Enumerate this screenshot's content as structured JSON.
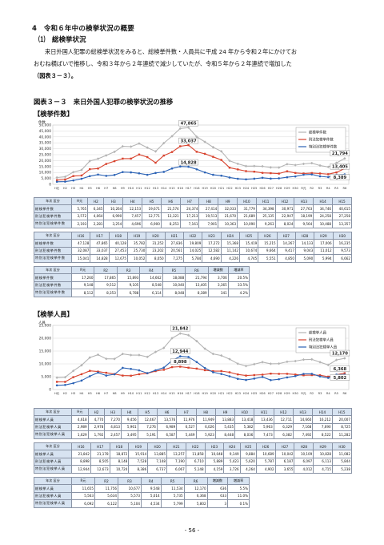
{
  "section": {
    "heading": "4　令和６年中の検挙状況の概要",
    "subheading": "⑴　総検挙状況",
    "paragraph_lines": [
      "来日外国人犯罪の総検挙状況をみると、総検挙件数・人員共に平成 24 年から令和２年にかけてお",
      "おむね横ばいで推移し、令和３年から２年連続で減少していたが、令和５年から２年連続で増加した",
      "（図表３－３）。"
    ]
  },
  "figure_title": "図表３－３　来日外国人犯罪の検挙状況の推移",
  "page_number": "- 56 -",
  "colors": {
    "total": "#b4b4b4",
    "penal": "#d8432e",
    "special": "#2b62b5",
    "table_header": "#d7e3f1"
  },
  "x_labels": [
    "H元",
    "H2",
    "H3",
    "H4",
    "H5",
    "H6",
    "H7",
    "H8",
    "H9",
    "H10",
    "H11",
    "H12",
    "H13",
    "H14",
    "H15",
    "H16",
    "H17",
    "H18",
    "H19",
    "H20",
    "H21",
    "H22",
    "H23",
    "H24",
    "H25",
    "H26",
    "H27",
    "H28",
    "H29",
    "H30",
    "R元",
    "R2",
    "R3",
    "R4",
    "R5",
    "R6"
  ],
  "cases": {
    "heading": "【検挙件数】",
    "corner_label": "年次 区分",
    "row_labels": [
      "総検挙件数",
      "刑法犯検挙件数",
      "特別法犯検挙件数"
    ],
    "table1": {
      "years": [
        "H元",
        "H2",
        "H3",
        "H4",
        "H5",
        "H6",
        "H7",
        "H8",
        "H9",
        "H10",
        "H11",
        "H12",
        "H13",
        "H14",
        "H15"
      ],
      "rows": [
        [
          "5,765",
          "6,345",
          "10,264",
          "12,153",
          "19,671",
          "21,574",
          "24,374",
          "27,414",
          "32,033",
          "31,779",
          "34,398",
          "30,971",
          "27,763",
          "34,746",
          "40,615"
        ],
        [
          "3,572",
          "4,064",
          "6,990",
          "7,457",
          "12,771",
          "13,321",
          "17,213",
          "19,513",
          "21,670",
          "21,689",
          "25,135",
          "22,947",
          "18,199",
          "24,258",
          "27,258"
        ],
        [
          "2,193",
          "2,281",
          "3,254",
          "4,696",
          "6,900",
          "8,253",
          "7,161",
          "7,901",
          "10,363",
          "10,090",
          "9,263",
          "8,024",
          "9,564",
          "10,488",
          "13,357"
        ]
      ]
    },
    "table2": {
      "years": [
        "H16",
        "H17",
        "H18",
        "H19",
        "H20",
        "H21",
        "H22",
        "H23",
        "H24",
        "H25",
        "H26",
        "H27",
        "H28",
        "H29",
        "H30"
      ],
      "rows": [
        [
          "47,128",
          "47,865",
          "40,128",
          "35,782",
          "31,252",
          "27,836",
          "19,809",
          "17,272",
          "15,368",
          "15,419",
          "15,215",
          "14,267",
          "14,133",
          "17,006",
          "16,235"
        ],
        [
          "32,087",
          "33,037",
          "27,453",
          "25,730",
          "23,202",
          "20,561",
          "14,025",
          "12,582",
          "11,142",
          "10,674",
          "9,664",
          "9,417",
          "9,043",
          "11,012",
          "9,573"
        ],
        [
          "15,041",
          "14,828",
          "12,675",
          "10,052",
          "8,050",
          "7,275",
          "5,784",
          "4,690",
          "4,226",
          "4,745",
          "5,551",
          "4,850",
          "5,090",
          "5,994",
          "6,662"
        ]
      ]
    },
    "table3": {
      "years": [
        "R元",
        "R2",
        "R3",
        "R4",
        "R5",
        "R6"
      ],
      "extra_headers": [
        "増減数",
        "増減率"
      ],
      "rows": [
        [
          "17,260",
          "17,865",
          "15,893",
          "14,662",
          "18,088",
          "21,794",
          "3,706",
          "20.5%"
        ],
        [
          "9,148",
          "9,512",
          "9,105",
          "8,548",
          "10,040",
          "13,405",
          "3,365",
          "33.5%"
        ],
        [
          "8,112",
          "8,353",
          "6,788",
          "6,114",
          "8,048",
          "8,389",
          "341",
          "4.2%"
        ]
      ]
    }
  },
  "persons": {
    "heading": "【検挙人員】",
    "corner_label": "年次 区分",
    "row_labels": [
      "総検挙人員",
      "刑法犯検挙人員",
      "特別法犯検挙人員"
    ],
    "table1": {
      "years": [
        "H元",
        "H2",
        "H3",
        "H4",
        "H5",
        "H6",
        "H7",
        "H8",
        "H9",
        "H10",
        "H11",
        "H12",
        "H13",
        "H14",
        "H15"
      ],
      "rows": [
        [
          "4,618",
          "4,770",
          "7,270",
          "9,456",
          "12,467",
          "13,576",
          "11,976",
          "11,949",
          "13,883",
          "13,418",
          "13,436",
          "12,711",
          "14,660",
          "16,212",
          "20,007"
        ],
        [
          "2,989",
          "2,978",
          "4,813",
          "5,961",
          "7,276",
          "6,989",
          "6,527",
          "6,026",
          "5,435",
          "5,382",
          "5,963",
          "6,329",
          "7,168",
          "7,690",
          "8,725"
        ],
        [
          "1,629",
          "1,792",
          "2,457",
          "3,495",
          "5,191",
          "6,587",
          "5,449",
          "5,923",
          "8,448",
          "8,036",
          "7,473",
          "6,382",
          "7,492",
          "8,522",
          "11,282"
        ]
      ]
    },
    "table2": {
      "years": [
        "H16",
        "H17",
        "H18",
        "H19",
        "H20",
        "H21",
        "H22",
        "H23",
        "H24",
        "H25",
        "H26",
        "H27",
        "H28",
        "H29",
        "H30"
      ],
      "rows": [
        [
          "21,842",
          "21,178",
          "18,872",
          "15,914",
          "13,885",
          "13,257",
          "11,858",
          "10,048",
          "9,149",
          "9,884",
          "10,689",
          "10,042",
          "10,109",
          "10,828",
          "11,082"
        ],
        [
          "8,898",
          "8,505",
          "8,148",
          "7,528",
          "7,148",
          "7,190",
          "6,710",
          "5,889",
          "5,423",
          "5,620",
          "5,787",
          "6,187",
          "6,097",
          "6,113",
          "5,844"
        ],
        [
          "12,944",
          "12,673",
          "10,724",
          "8,386",
          "6,737",
          "6,067",
          "5,148",
          "4,159",
          "3,726",
          "4,264",
          "4,902",
          "3,655",
          "4,012",
          "4,715",
          "5,238"
        ]
      ]
    },
    "table3": {
      "years": [
        "R元",
        "R2",
        "R3",
        "R4",
        "R5",
        "R6"
      ],
      "extra_headers": [
        "増減数",
        "増減率"
      ],
      "rows": [
        [
          "11,655",
          "11,756",
          "10,677",
          "9,548",
          "11,534",
          "12,170",
          "636",
          "5.5%"
        ],
        [
          "5,563",
          "5,634",
          "5,573",
          "5,014",
          "5,735",
          "6,368",
          "633",
          "11.0%"
        ],
        [
          "6,092",
          "6,122",
          "5,104",
          "4,534",
          "5,799",
          "5,802",
          "3",
          "0.1%"
        ]
      ]
    }
  },
  "chart_data": [
    {
      "type": "line",
      "ylabel": "件数",
      "ylim": [
        0,
        50000
      ],
      "yticks": [
        "0",
        "5,000",
        "10,000",
        "15,000",
        "20,000",
        "25,000",
        "30,000",
        "35,000",
        "40,000",
        "45,000",
        "50,000"
      ],
      "legend": "top-right",
      "series": [
        {
          "name": "総検挙件数",
          "color": "#b4b4b4",
          "values": [
            5765,
            6345,
            10264,
            12153,
            19671,
            21574,
            24374,
            27414,
            32033,
            31779,
            34398,
            30971,
            27763,
            34746,
            40615,
            47128,
            47865,
            40128,
            35782,
            31252,
            27836,
            19809,
            17272,
            15368,
            15419,
            15215,
            14267,
            14133,
            17006,
            16235,
            17260,
            17865,
            15893,
            14662,
            18088,
            21794
          ]
        },
        {
          "name": "刑法犯検挙件数",
          "color": "#d8432e",
          "values": [
            3572,
            4064,
            6990,
            7457,
            12771,
            13321,
            17213,
            19513,
            21670,
            21689,
            25135,
            22947,
            18199,
            24258,
            27258,
            32087,
            33037,
            27453,
            25730,
            23202,
            20561,
            14025,
            12582,
            11142,
            10674,
            9664,
            9417,
            9043,
            11012,
            9573,
            9148,
            9512,
            9105,
            8548,
            10040,
            13405
          ]
        },
        {
          "name": "特別法犯検挙件数",
          "color": "#2b62b5",
          "values": [
            2193,
            2281,
            3254,
            4696,
            6900,
            8253,
            7161,
            7901,
            10363,
            10090,
            9263,
            8024,
            9564,
            10488,
            13357,
            15041,
            14828,
            12675,
            10052,
            8050,
            7275,
            5784,
            4690,
            4226,
            4745,
            5551,
            4850,
            5090,
            5994,
            6662,
            8112,
            8353,
            6788,
            6114,
            8048,
            8389
          ]
        }
      ],
      "annotations": [
        "47,865",
        "33,037",
        "14,828",
        "21,794",
        "13,405",
        "8,389"
      ]
    },
    {
      "type": "line",
      "ylabel": "人員",
      "ylim": [
        0,
        25000
      ],
      "yticks": [
        "0",
        "5,000",
        "10,000",
        "15,000",
        "20,000",
        "25,000"
      ],
      "legend": "top-right",
      "series": [
        {
          "name": "総検挙人員",
          "color": "#b4b4b4",
          "values": [
            4618,
            4770,
            7270,
            9456,
            12467,
            13576,
            11976,
            11949,
            13883,
            13418,
            13436,
            12711,
            14660,
            16212,
            20007,
            21842,
            21178,
            18872,
            15914,
            13885,
            13257,
            11858,
            10048,
            9149,
            9884,
            10689,
            10042,
            10109,
            10828,
            11082,
            11655,
            11756,
            10677,
            9548,
            11534,
            12170
          ]
        },
        {
          "name": "刑法犯検挙人員",
          "color": "#d8432e",
          "values": [
            2989,
            2978,
            4813,
            5961,
            7276,
            6989,
            6527,
            6026,
            5435,
            5382,
            5963,
            6329,
            7168,
            7690,
            8725,
            8898,
            8505,
            8148,
            7528,
            7148,
            7190,
            6710,
            5889,
            5423,
            5620,
            5787,
            6187,
            6097,
            6113,
            5844,
            5563,
            5634,
            5573,
            5014,
            5735,
            6368
          ]
        },
        {
          "name": "特別法犯検挙人員",
          "color": "#2b62b5",
          "values": [
            1629,
            1792,
            2457,
            3495,
            5191,
            6587,
            5449,
            5923,
            8448,
            8036,
            7473,
            6382,
            7492,
            8522,
            11282,
            12944,
            12673,
            10724,
            8386,
            6737,
            6067,
            5148,
            4159,
            3726,
            4264,
            4902,
            3655,
            4012,
            4715,
            5238,
            6092,
            6122,
            5104,
            4534,
            5799,
            5802
          ]
        }
      ],
      "annotations": [
        "21,842",
        "12,944",
        "8,898",
        "12,170",
        "6,368",
        "5,802"
      ]
    }
  ]
}
